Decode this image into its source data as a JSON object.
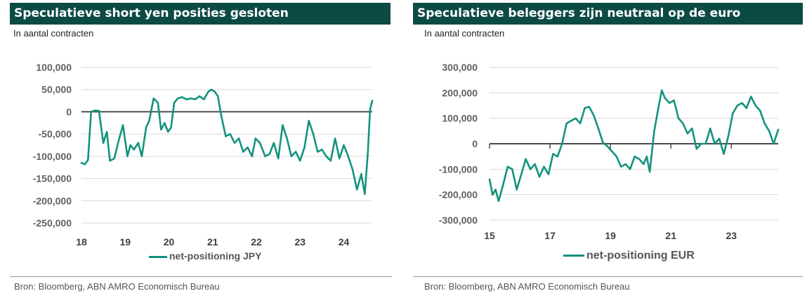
{
  "line_color": "#14927f",
  "title_bar_color": "#0c4a45",
  "panels": [
    {
      "title": "Speculatieve short yen posities gesloten",
      "subtitle": "In aantal contracten",
      "legend": "net-positioning JPY",
      "source": "Bron: Bloomberg, ABN AMRO Economisch Bureau"
    },
    {
      "title": "Speculatieve beleggers zijn neutraal op de euro",
      "subtitle": "In aantal contracten",
      "legend": "net-positioning EUR",
      "source": "Bron: Bloomberg, ABN AMRO Economisch Bureau"
    }
  ],
  "chart_data": [
    {
      "type": "line",
      "title": "Speculatieve short yen posities gesloten",
      "ylabel": "In aantal contracten",
      "xlim": [
        2018,
        2024.65
      ],
      "ylim": [
        -250000,
        100000
      ],
      "yticks": [
        100000,
        50000,
        0,
        -50000,
        -100000,
        -150000,
        -200000,
        -250000
      ],
      "ytick_labels": [
        "100,000",
        "50,000",
        "0",
        "-50,000",
        "-100,000",
        "-150,000",
        "-200,000",
        "-250,000"
      ],
      "xticks": [
        2018,
        2019,
        2020,
        2021,
        2022,
        2023,
        2024
      ],
      "xtick_labels": [
        "18",
        "19",
        "20",
        "21",
        "22",
        "23",
        "24"
      ],
      "grid": true,
      "series": [
        {
          "name": "net-positioning JPY",
          "x": [
            2018.0,
            2018.08,
            2018.15,
            2018.22,
            2018.32,
            2018.4,
            2018.5,
            2018.58,
            2018.65,
            2018.75,
            2018.85,
            2018.95,
            2019.05,
            2019.12,
            2019.2,
            2019.3,
            2019.38,
            2019.48,
            2019.55,
            2019.65,
            2019.75,
            2019.82,
            2019.9,
            2019.98,
            2020.05,
            2020.12,
            2020.2,
            2020.3,
            2020.4,
            2020.5,
            2020.6,
            2020.7,
            2020.8,
            2020.9,
            2020.97,
            2021.05,
            2021.12,
            2021.2,
            2021.3,
            2021.4,
            2021.5,
            2021.6,
            2021.7,
            2021.8,
            2021.9,
            2021.98,
            2022.08,
            2022.2,
            2022.3,
            2022.4,
            2022.5,
            2022.6,
            2022.7,
            2022.8,
            2022.9,
            2023.0,
            2023.1,
            2023.2,
            2023.3,
            2023.4,
            2023.5,
            2023.6,
            2023.7,
            2023.8,
            2023.9,
            2024.0,
            2024.1,
            2024.2,
            2024.3,
            2024.4,
            2024.48,
            2024.55,
            2024.6,
            2024.65
          ],
          "values": [
            -115000,
            -118000,
            -108000,
            0,
            3000,
            2000,
            -70000,
            -45000,
            -110000,
            -105000,
            -65000,
            -30000,
            -100000,
            -75000,
            -85000,
            -70000,
            -100000,
            -35000,
            -20000,
            30000,
            20000,
            -40000,
            -25000,
            -45000,
            -35000,
            20000,
            30000,
            33000,
            28000,
            30000,
            28000,
            35000,
            28000,
            45000,
            50000,
            45000,
            35000,
            -10000,
            -55000,
            -50000,
            -70000,
            -60000,
            -90000,
            -80000,
            -100000,
            -60000,
            -70000,
            -100000,
            -95000,
            -70000,
            -105000,
            -30000,
            -60000,
            -100000,
            -90000,
            -110000,
            -80000,
            -20000,
            -50000,
            -90000,
            -85000,
            -100000,
            -110000,
            -60000,
            -105000,
            -75000,
            -100000,
            -130000,
            -175000,
            -140000,
            -185000,
            -90000,
            5000,
            25000
          ]
        }
      ]
    },
    {
      "type": "line",
      "title": "Speculatieve beleggers zijn neutraal op de euro",
      "ylabel": "In aantal contracten",
      "xlim": [
        2015,
        2024.55
      ],
      "ylim": [
        -300000,
        300000
      ],
      "yticks": [
        300000,
        200000,
        100000,
        0,
        -100000,
        -200000,
        -300000
      ],
      "ytick_labels": [
        "300,000",
        "200,000",
        "100,000",
        "0",
        "-100,000",
        "-200,000",
        "-300,000"
      ],
      "xticks": [
        2015,
        2017,
        2019,
        2021,
        2023
      ],
      "xtick_labels": [
        "15",
        "17",
        "19",
        "21",
        "23"
      ],
      "grid": true,
      "series": [
        {
          "name": "net-positioning EUR",
          "x": [
            2015.0,
            2015.1,
            2015.2,
            2015.3,
            2015.45,
            2015.6,
            2015.75,
            2015.9,
            2016.05,
            2016.2,
            2016.35,
            2016.5,
            2016.65,
            2016.8,
            2016.95,
            2017.1,
            2017.25,
            2017.4,
            2017.55,
            2017.7,
            2017.85,
            2018.0,
            2018.15,
            2018.3,
            2018.45,
            2018.6,
            2018.75,
            2018.9,
            2019.05,
            2019.2,
            2019.35,
            2019.5,
            2019.65,
            2019.8,
            2019.95,
            2020.1,
            2020.2,
            2020.3,
            2020.45,
            2020.6,
            2020.7,
            2020.8,
            2020.95,
            2021.1,
            2021.25,
            2021.4,
            2021.55,
            2021.7,
            2021.85,
            2022.0,
            2022.15,
            2022.3,
            2022.45,
            2022.6,
            2022.75,
            2022.9,
            2023.05,
            2023.2,
            2023.35,
            2023.5,
            2023.65,
            2023.8,
            2023.95,
            2024.1,
            2024.25,
            2024.4,
            2024.55
          ],
          "values": [
            -140000,
            -200000,
            -180000,
            -225000,
            -160000,
            -90000,
            -100000,
            -180000,
            -120000,
            -60000,
            -100000,
            -80000,
            -130000,
            -90000,
            -120000,
            -40000,
            -50000,
            0,
            80000,
            90000,
            100000,
            80000,
            140000,
            145000,
            110000,
            60000,
            5000,
            -10000,
            -30000,
            -50000,
            -90000,
            -80000,
            -100000,
            -50000,
            -60000,
            -80000,
            -50000,
            -110000,
            50000,
            150000,
            210000,
            180000,
            160000,
            170000,
            100000,
            80000,
            40000,
            60000,
            -20000,
            0,
            0,
            60000,
            0,
            20000,
            -40000,
            30000,
            120000,
            150000,
            160000,
            140000,
            185000,
            150000,
            130000,
            80000,
            50000,
            0,
            55000
          ]
        }
      ]
    }
  ]
}
